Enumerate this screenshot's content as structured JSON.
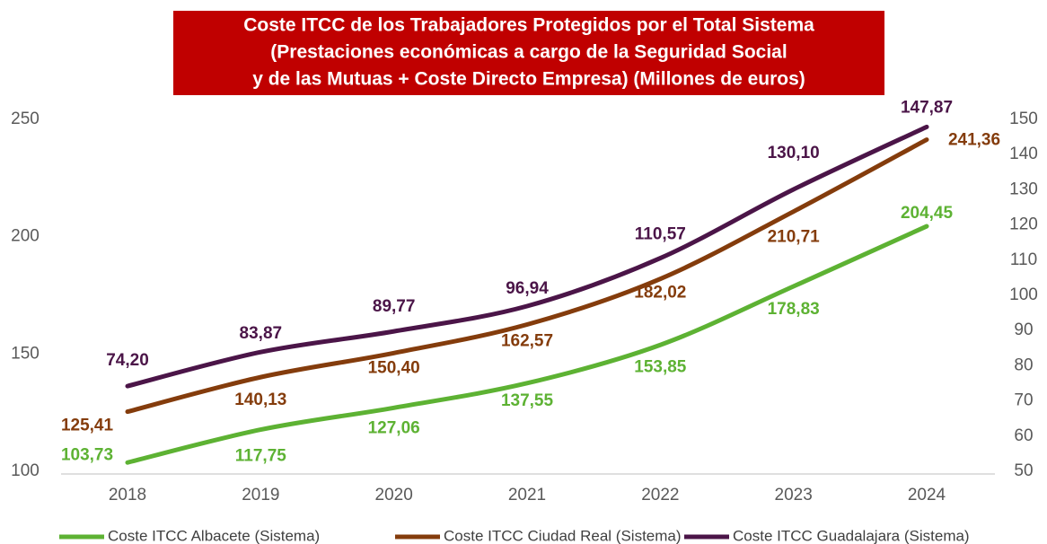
{
  "chart_data": {
    "type": "line",
    "title": [
      "Coste ITCC de los Trabajadores Protegidos por el Total Sistema",
      "(Prestaciones económicas a cargo de la Seguridad Social",
      "y de las Mutuas + Coste Directo Empresa) (Millones  de euros)"
    ],
    "categories": [
      "2018",
      "2019",
      "2020",
      "2021",
      "2022",
      "2023",
      "2024"
    ],
    "series": [
      {
        "name": "Coste ITCC Albacete (Sistema)",
        "color": "#5db233",
        "values": [
          103.73,
          117.75,
          127.06,
          137.55,
          153.85,
          178.83,
          204.45
        ],
        "value_labels": [
          "103,73",
          "117,75",
          "127,06",
          "137,55",
          "153,85",
          "178,83",
          "204,45"
        ]
      },
      {
        "name": "Coste ITCC Ciudad Real (Sistema)",
        "color": "#843c0c",
        "values": [
          125.41,
          140.13,
          150.4,
          162.57,
          182.02,
          210.71,
          241.36
        ],
        "value_labels": [
          "125,41",
          "140,13",
          "150,40",
          "162,57",
          "182,02",
          "210,71",
          "241,36"
        ]
      },
      {
        "name": "Coste ITCC Guadalajara (Sistema)",
        "color": "#4b1548",
        "axis": "y2",
        "values": [
          74.2,
          83.87,
          89.77,
          96.94,
          110.57,
          130.1,
          147.87
        ],
        "value_labels": [
          "74,20",
          "83,87",
          "89,77",
          "96,94",
          "110,57",
          "130,10",
          "147,87"
        ]
      }
    ],
    "ylim": [
      100,
      250
    ],
    "yticks": [
      100,
      150,
      200,
      250
    ],
    "y2lim": [
      50,
      150
    ],
    "y2ticks": [
      50,
      60,
      70,
      80,
      90,
      100,
      110,
      120,
      130,
      140,
      150
    ]
  }
}
